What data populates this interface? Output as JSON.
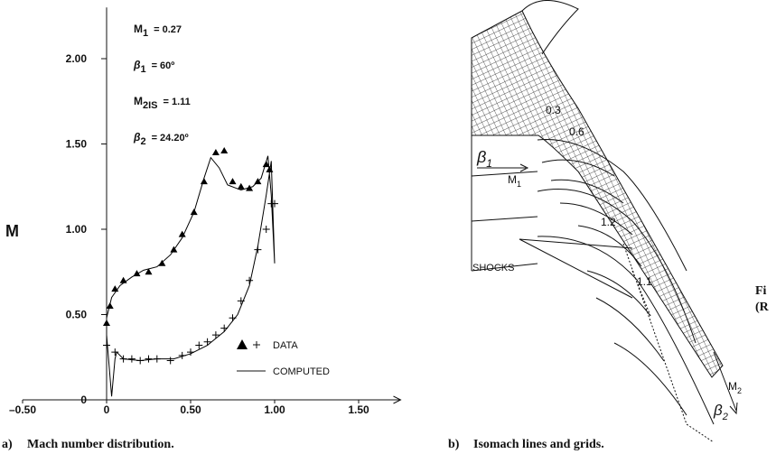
{
  "chart_data": {
    "type": "scatter_line",
    "y_label": "M",
    "xlim": [
      -0.5,
      1.75
    ],
    "ylim": [
      0,
      2.3
    ],
    "xticks": [
      {
        "value": -0.5,
        "label": "–0.50"
      },
      0,
      {
        "value": 0.5,
        "label": "0.50"
      },
      {
        "value": 1.0,
        "label": "1.00"
      },
      {
        "value": 1.5,
        "label": "1.50"
      }
    ],
    "yticks": [
      0,
      {
        "value": 0.5,
        "label": "0.50"
      },
      {
        "value": 1.0,
        "label": "1.00"
      },
      {
        "value": 1.5,
        "label": "1.50"
      },
      {
        "value": 2.0,
        "label": "2.00"
      }
    ],
    "annotations": [
      {
        "symbol": "M",
        "subscript": "1",
        "text": "= 0.27"
      },
      {
        "symbol": "β",
        "subscript": "1",
        "text": "= 60º"
      },
      {
        "symbol": "M",
        "subscript": "2IS",
        "text": "= 1.11"
      },
      {
        "symbol": "β",
        "subscript": "2",
        "text": "= 24.20º"
      }
    ],
    "legend": {
      "data": "DATA",
      "computed": "COMPUTED"
    },
    "series": [
      {
        "marker": "triangle",
        "color": "#000",
        "x": [
          0.0,
          0.02,
          0.05,
          0.1,
          0.18,
          0.25,
          0.33,
          0.4,
          0.45,
          0.52,
          0.58,
          0.65,
          0.7,
          0.75,
          0.8,
          0.85,
          0.9,
          0.95,
          0.97
        ],
        "values": [
          0.45,
          0.55,
          0.65,
          0.7,
          0.74,
          0.75,
          0.8,
          0.88,
          0.97,
          1.1,
          1.28,
          1.45,
          1.46,
          1.28,
          1.25,
          1.24,
          1.28,
          1.38,
          1.35
        ]
      },
      {
        "marker": "plus",
        "color": "#000",
        "x": [
          0.0,
          0.05,
          0.1,
          0.15,
          0.2,
          0.25,
          0.3,
          0.38,
          0.45,
          0.5,
          0.55,
          0.6,
          0.65,
          0.7,
          0.75,
          0.8,
          0.85,
          0.9,
          0.95,
          0.98,
          1.0
        ],
        "values": [
          0.32,
          0.28,
          0.24,
          0.24,
          0.23,
          0.24,
          0.24,
          0.23,
          0.26,
          0.28,
          0.32,
          0.34,
          0.38,
          0.42,
          0.48,
          0.58,
          0.7,
          0.88,
          1.0,
          1.15,
          1.15
        ]
      },
      {
        "marker": "line",
        "color": "#000",
        "x": [
          0.03,
          0.0,
          0.0,
          0.03,
          0.08,
          0.15,
          0.22,
          0.3,
          0.38,
          0.45,
          0.52,
          0.58,
          0.62,
          0.67,
          0.72,
          0.8,
          0.87,
          0.92,
          0.96,
          0.98,
          1.0,
          0.98,
          0.95,
          0.9,
          0.85,
          0.78,
          0.7,
          0.6,
          0.5,
          0.4,
          0.3,
          0.2,
          0.1,
          0.06,
          0.05,
          0.03
        ],
        "values": [
          0.02,
          0.38,
          0.48,
          0.6,
          0.67,
          0.72,
          0.76,
          0.78,
          0.85,
          0.95,
          1.1,
          1.3,
          1.42,
          1.36,
          1.26,
          1.23,
          1.25,
          1.3,
          1.43,
          1.2,
          0.8,
          1.4,
          1.2,
          0.9,
          0.67,
          0.5,
          0.4,
          0.32,
          0.27,
          0.24,
          0.24,
          0.23,
          0.24,
          0.28,
          0.24,
          0.02
        ]
      }
    ],
    "caption": {
      "letter": "a)",
      "text": "Mach number distribution."
    }
  },
  "figure_b": {
    "contours": [
      "0.3",
      "0.6",
      "1.2",
      "1.1"
    ],
    "shocks": "SHOCKS",
    "beta1": {
      "symbol": "β",
      "subscript": "1"
    },
    "m1": {
      "symbol": "M",
      "subscript": "1"
    },
    "m2": {
      "symbol": "M",
      "subscript": "2"
    },
    "beta2": {
      "symbol": "β",
      "subscript": "2"
    },
    "side_text": [
      "Fi",
      "(R"
    ],
    "caption": {
      "letter": "b)",
      "text": "Isomach lines and grids."
    }
  }
}
